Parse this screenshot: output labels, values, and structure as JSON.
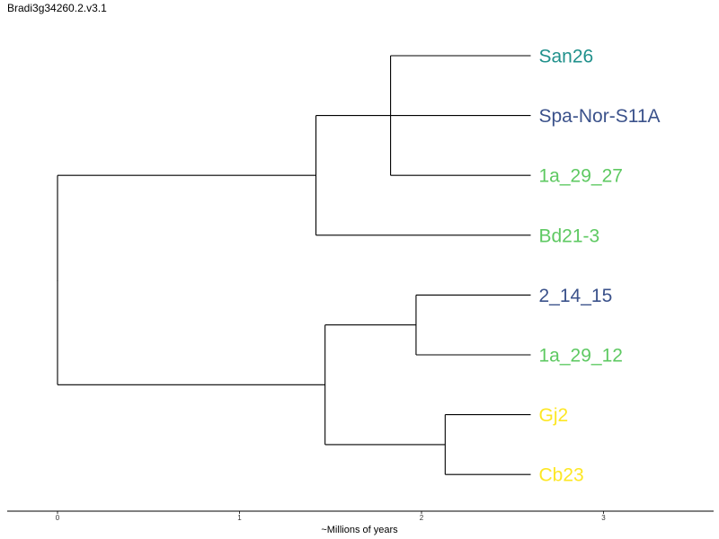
{
  "title": "Bradi3g34260.2.v3.1",
  "axis": {
    "label": "~Millions of years",
    "ticks": [
      0,
      1,
      2,
      3
    ],
    "range": [
      -0.27,
      3.6
    ]
  },
  "tips": [
    {
      "name": "San26",
      "color": "#21918c"
    },
    {
      "name": "Spa-Nor-S11A",
      "color": "#3b528b"
    },
    {
      "name": "1a_29_27",
      "color": "#5ec962"
    },
    {
      "name": "Bd21-3",
      "color": "#5ec962"
    },
    {
      "name": "2_14_15",
      "color": "#3b528b"
    },
    {
      "name": "1a_29_12",
      "color": "#5ec962"
    },
    {
      "name": "Gj2",
      "color": "#fde725"
    },
    {
      "name": "Cb23",
      "color": "#fde725"
    }
  ],
  "tip_time": 2.6,
  "nodes": [
    {
      "id": "n_san_1a",
      "time": 1.83,
      "children": [
        "tip:0",
        "tip:2"
      ]
    },
    {
      "id": "n_A",
      "time": 1.42,
      "children": [
        "n_san_1a",
        "tip:3"
      ]
    },
    {
      "id": "n_214_1a",
      "time": 1.97,
      "children": [
        "tip:4",
        "tip:5"
      ]
    },
    {
      "id": "n_gj_cb",
      "time": 2.13,
      "children": [
        "tip:6",
        "tip:7"
      ]
    },
    {
      "id": "n_B",
      "time": 1.47,
      "children": [
        "n_214_1a",
        "n_gj_cb"
      ]
    },
    {
      "id": "root",
      "time": 0.0,
      "children": [
        "n_A",
        "n_B"
      ]
    }
  ],
  "extra_branches": [
    {
      "tip": 1,
      "from_time": 1.83
    }
  ]
}
